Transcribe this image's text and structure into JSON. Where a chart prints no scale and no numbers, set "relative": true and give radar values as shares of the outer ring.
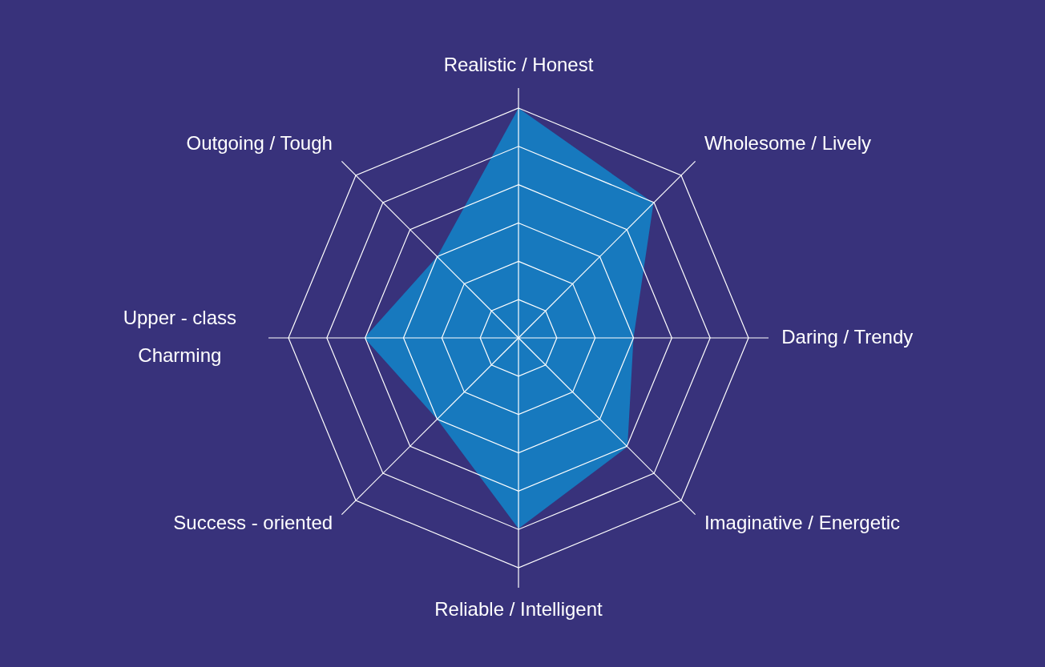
{
  "chart_data": {
    "type": "radar",
    "categories": [
      "Realistic / Honest",
      "Wholesome / Lively",
      "Daring / Trendy",
      "Imaginative / Energetic",
      "Reliable / Intelligent",
      "Success - oriented",
      "Upper - class\nCharming",
      "Outgoing / Tough"
    ],
    "series": [
      {
        "color": "#1779be",
        "values": [
          1,
          0.83,
          0.5,
          0.67,
          0.83,
          0.5,
          0.67,
          0.5
        ]
      }
    ],
    "relative": true,
    "grid": true
  }
}
